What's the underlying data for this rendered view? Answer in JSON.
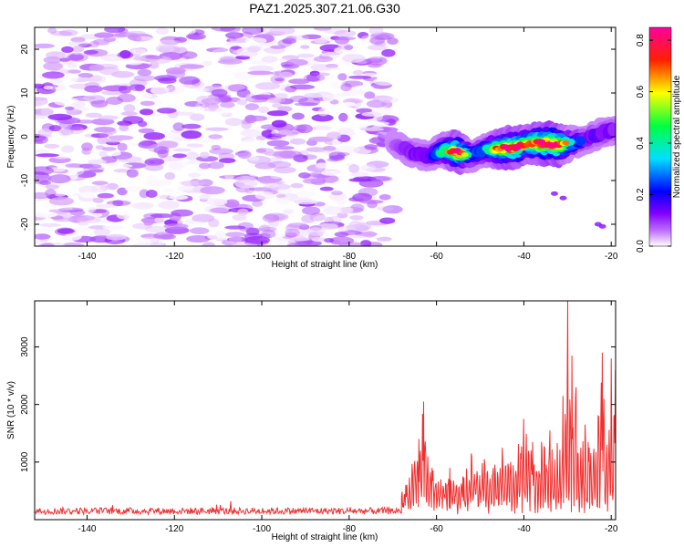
{
  "title": "PAZ1.2025.307.21.06.G30",
  "chart_data": [
    {
      "type": "heatmap",
      "name": "spectrogram",
      "xlabel": "Height of straight line (km)",
      "ylabel": "Frequency (Hz)",
      "xlim": [
        -152,
        -19
      ],
      "ylim": [
        -25,
        25
      ],
      "xticks": [
        -140,
        -120,
        -100,
        -80,
        -60,
        -40,
        -20
      ],
      "yticks": [
        -20,
        -10,
        0,
        10,
        20
      ],
      "noise_region_x": [
        -152,
        -70
      ],
      "noise_amplitude_range": [
        0.0,
        0.12
      ],
      "ridge": {
        "x": [
          -70,
          -66,
          -62,
          -58,
          -55,
          -52,
          -49,
          -45,
          -42,
          -39,
          -35,
          -32,
          -29,
          -26,
          -23,
          -20
        ],
        "freq": [
          -1.5,
          -3.5,
          -4.5,
          -3.0,
          -3.5,
          -4.5,
          -3.0,
          -2.5,
          -2.5,
          -1.5,
          -1.5,
          -1.8,
          -1.5,
          -0.5,
          0.5,
          1.5
        ],
        "amplitude": [
          0.15,
          0.3,
          0.3,
          0.55,
          0.8,
          0.4,
          0.45,
          0.75,
          0.8,
          0.65,
          0.85,
          0.8,
          0.45,
          0.3,
          0.35,
          0.3
        ]
      },
      "colorbar": {
        "label": "Normalized spectral amplitude",
        "range": [
          0.0,
          0.85
        ],
        "ticks": [
          0.0,
          0.2,
          0.4,
          0.6,
          0.8
        ],
        "colormap": [
          "#ffffff",
          "#a000ff",
          "#0000ff",
          "#00ffff",
          "#00ff00",
          "#ffff00",
          "#ff0000",
          "#ff00a0"
        ]
      }
    },
    {
      "type": "line",
      "name": "snr",
      "xlabel": "Height of straight line (km)",
      "ylabel": "SNR (10 * v/v)",
      "xlim": [
        -152,
        -19
      ],
      "ylim": [
        0,
        3800
      ],
      "xticks": [
        -140,
        -120,
        -100,
        -80,
        -60,
        -40,
        -20
      ],
      "yticks": [
        1000,
        2000,
        3000
      ],
      "line_color": "#f03030",
      "series": [
        {
          "name": "SNR",
          "noise_floor": {
            "x_range": [
              -152,
              -68
            ],
            "mean": 150,
            "spread": 60
          },
          "peaks_x": [
            -70,
            -67,
            -64,
            -63,
            -62,
            -61,
            -59,
            -57,
            -54,
            -52,
            -49,
            -47,
            -45,
            -43,
            -40,
            -38,
            -36,
            -34,
            -33,
            -31,
            -30,
            -29,
            -28,
            -27,
            -26,
            -25,
            -23,
            -22,
            -21,
            -20,
            -19
          ],
          "peaks_y": [
            250,
            600,
            1400,
            2050,
            1100,
            900,
            700,
            900,
            750,
            1150,
            1050,
            900,
            1250,
            1000,
            1750,
            1350,
            1350,
            1550,
            1050,
            2150,
            3800,
            2850,
            2300,
            1250,
            1650,
            1250,
            1800,
            2900,
            1300,
            2800,
            2600
          ]
        }
      ]
    }
  ]
}
